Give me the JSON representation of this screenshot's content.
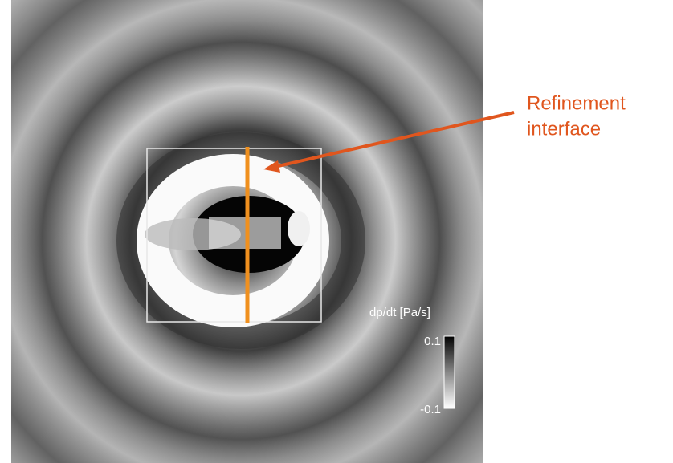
{
  "annotation": {
    "lines": [
      "Refinement",
      "interface"
    ]
  },
  "colorbar": {
    "label": "dp/dt [Pa/s]",
    "max": 0.1,
    "min": -0.1
  }
}
